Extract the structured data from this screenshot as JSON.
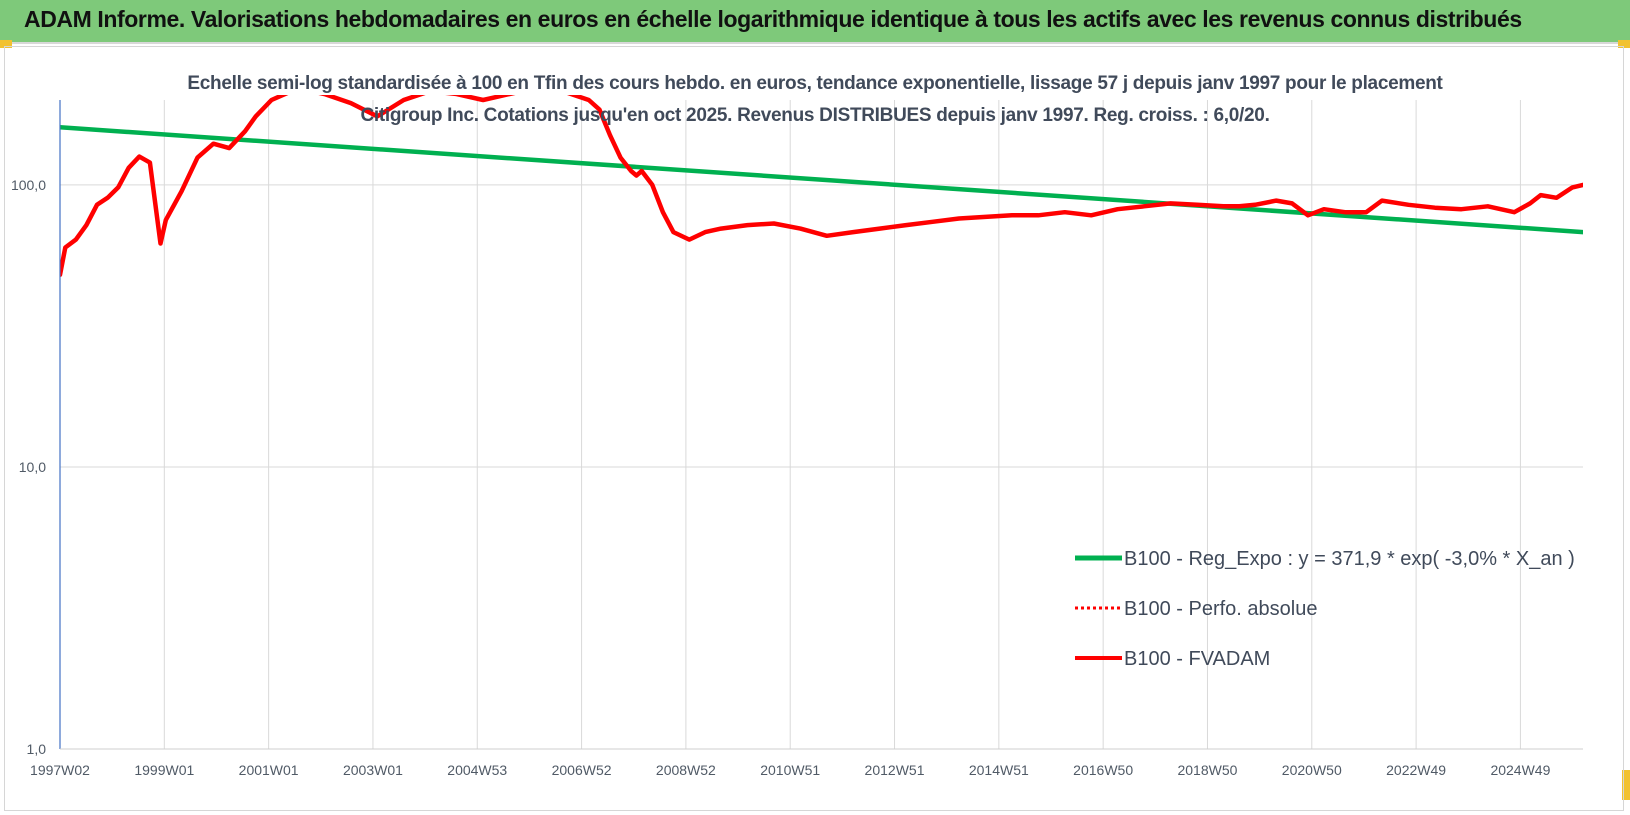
{
  "header": {
    "title": "ADAM Informe. Valorisations hebdomadaires en euros en échelle logarithmique identique à tous les actifs avec les revenus connus distribués"
  },
  "colors": {
    "header_bg": "#7ec97a",
    "trend": "#00b050",
    "fvadam": "#ff0000",
    "grid": "#d9d9d9",
    "axis": "#4472c4"
  },
  "chart_data": {
    "type": "line",
    "title": "Echelle semi-log standardisée à 100 en Tfin des cours hebdo. en euros, tendance exponentielle, lissage 57 j depuis janv 1997 pour le placement Citigroup Inc. Cotations jusqu'en oct 2025. Revenus DISTRIBUES depuis janv 1997. Reg. croiss. : 6,0/20.",
    "y_scale": "log",
    "ylim": [
      1,
      200
    ],
    "y_ticks": [
      "1,0",
      "10,0",
      "100,0"
    ],
    "x_ticks": [
      "1997W02",
      "1999W01",
      "2001W01",
      "2003W01",
      "2004W53",
      "2006W52",
      "2008W52",
      "2010W51",
      "2012W51",
      "2014W51",
      "2016W50",
      "2018W50",
      "2020W50",
      "2022W49",
      "2024W49"
    ],
    "xlim": [
      1997.0,
      2025.8
    ],
    "legend_position": "right",
    "grid": true,
    "series": [
      {
        "name": "B100 - Reg_Expo : y = 371,9 * exp( -3,0% *  X_an )",
        "style": "solid-green",
        "x": [
          1997.0,
          2025.8
        ],
        "y": [
          160,
          68
        ]
      },
      {
        "name": "B100 - Perfo. absolue",
        "style": "dotted-red",
        "x": [],
        "y": []
      },
      {
        "name": "B100 - FVADAM",
        "style": "solid-red",
        "x": [
          1997.0,
          1997.1,
          1997.3,
          1997.5,
          1997.7,
          1997.9,
          1998.1,
          1998.3,
          1998.5,
          1998.7,
          1998.9,
          1999.0,
          1999.3,
          1999.6,
          1999.9,
          2000.2,
          2000.5,
          2000.7,
          2001.0,
          2001.5,
          2002.0,
          2002.5,
          2003.0,
          2003.5,
          2004.0,
          2004.5,
          2005.0,
          2005.5,
          2006.0,
          2006.5,
          2007.0,
          2007.2,
          2007.4,
          2007.6,
          2007.8,
          2007.9,
          2008.0,
          2008.2,
          2008.4,
          2008.6,
          2008.9,
          2009.2,
          2009.5,
          2010.0,
          2010.5,
          2011.0,
          2011.5,
          2012.0,
          2012.5,
          2013.0,
          2013.5,
          2014.0,
          2014.5,
          2015.0,
          2015.5,
          2016.0,
          2016.5,
          2017.0,
          2017.5,
          2018.0,
          2018.5,
          2019.0,
          2019.3,
          2019.6,
          2020.0,
          2020.3,
          2020.6,
          2020.9,
          2021.3,
          2021.7,
          2022.0,
          2022.5,
          2023.0,
          2023.5,
          2024.0,
          2024.5,
          2024.8,
          2025.0,
          2025.3,
          2025.6,
          2025.8
        ],
        "y": [
          48,
          60,
          64,
          72,
          85,
          90,
          98,
          115,
          126,
          120,
          62,
          75,
          95,
          125,
          140,
          135,
          155,
          175,
          200,
          220,
          210,
          195,
          175,
          200,
          215,
          210,
          200,
          210,
          220,
          215,
          200,
          185,
          150,
          125,
          112,
          108,
          112,
          100,
          80,
          68,
          64,
          68,
          70,
          72,
          73,
          70,
          66,
          68,
          70,
          72,
          74,
          76,
          77,
          78,
          78,
          80,
          78,
          82,
          84,
          86,
          85,
          84,
          84,
          85,
          88,
          86,
          78,
          82,
          80,
          80,
          88,
          85,
          83,
          82,
          84,
          80,
          86,
          92,
          90,
          98,
          100
        ]
      }
    ]
  }
}
